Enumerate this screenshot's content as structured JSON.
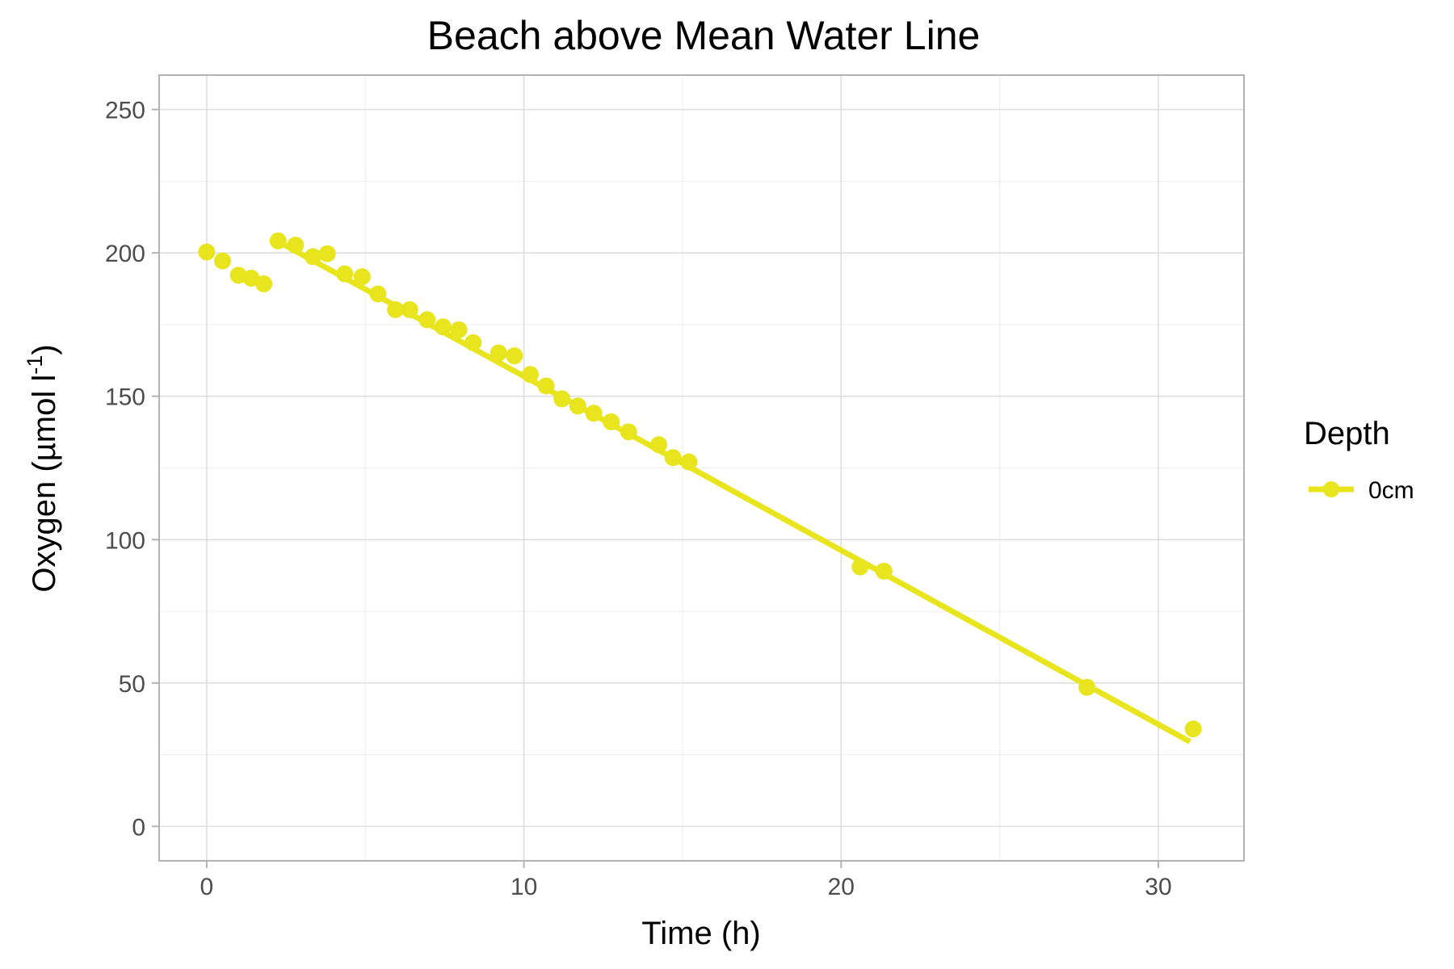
{
  "chart_data": {
    "type": "scatter",
    "title": "Beach above Mean Water Line",
    "xlabel": "Time (h)",
    "ylabel": {
      "main": "Oxygen (µmol l",
      "sup": "-1",
      "close": ")"
    },
    "xlim": [
      -1.5,
      32.7
    ],
    "ylim": [
      -12,
      262
    ],
    "x_ticks": [
      0,
      10,
      20,
      30
    ],
    "x_tick_labels": [
      "0",
      "10",
      "20",
      "30"
    ],
    "y_ticks": [
      0,
      50,
      100,
      150,
      200,
      250
    ],
    "y_tick_labels": [
      "0",
      "50",
      "100",
      "150",
      "200",
      "250"
    ],
    "grid": true,
    "legend": {
      "title": "Depth",
      "position": "right",
      "entries": [
        "0cm"
      ]
    },
    "series": [
      {
        "name": "0cm",
        "color": "#e8e51f",
        "points": [
          {
            "x": 0.0,
            "y": 200.3
          },
          {
            "x": 0.5,
            "y": 197.2
          },
          {
            "x": 1.0,
            "y": 192.2
          },
          {
            "x": 1.4,
            "y": 191.2
          },
          {
            "x": 1.8,
            "y": 189.2
          },
          {
            "x": 2.25,
            "y": 204.2
          },
          {
            "x": 2.8,
            "y": 202.7
          },
          {
            "x": 3.35,
            "y": 198.7
          },
          {
            "x": 3.8,
            "y": 199.7
          },
          {
            "x": 4.35,
            "y": 192.7
          },
          {
            "x": 4.9,
            "y": 191.7
          },
          {
            "x": 5.4,
            "y": 185.7
          },
          {
            "x": 5.95,
            "y": 180.2
          },
          {
            "x": 6.4,
            "y": 180.2
          },
          {
            "x": 6.95,
            "y": 176.7
          },
          {
            "x": 7.45,
            "y": 174.2
          },
          {
            "x": 7.95,
            "y": 173.2
          },
          {
            "x": 8.4,
            "y": 168.7
          },
          {
            "x": 9.2,
            "y": 165.1
          },
          {
            "x": 9.7,
            "y": 164.1
          },
          {
            "x": 10.2,
            "y": 157.6
          },
          {
            "x": 10.7,
            "y": 153.6
          },
          {
            "x": 11.2,
            "y": 149.1
          },
          {
            "x": 11.7,
            "y": 146.6
          },
          {
            "x": 12.2,
            "y": 144.1
          },
          {
            "x": 12.75,
            "y": 141.1
          },
          {
            "x": 13.3,
            "y": 137.6
          },
          {
            "x": 14.25,
            "y": 133.1
          },
          {
            "x": 14.7,
            "y": 128.6
          },
          {
            "x": 15.2,
            "y": 127.1
          },
          {
            "x": 20.6,
            "y": 90.5
          },
          {
            "x": 21.35,
            "y": 89.0
          },
          {
            "x": 27.75,
            "y": 48.5
          },
          {
            "x": 31.1,
            "y": 34.0
          }
        ],
        "fit_line": [
          {
            "x": 2.25,
            "y": 204.0
          },
          {
            "x": 31.0,
            "y": 29.5
          }
        ]
      }
    ]
  }
}
